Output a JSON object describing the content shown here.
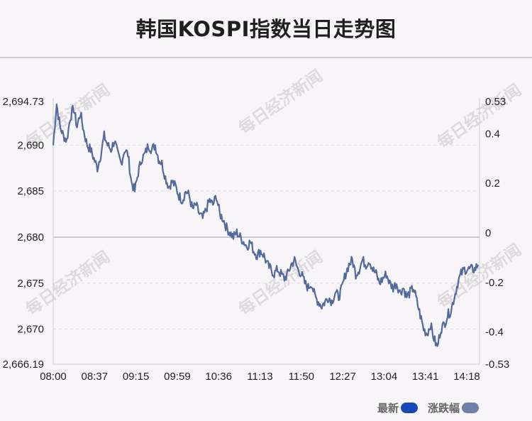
{
  "title": "韩国KOSPI指数当日走势图",
  "watermark": "每日经济新闻",
  "legend": [
    {
      "label": "最新",
      "color": "#1a47b8"
    },
    {
      "label": "涨跌幅",
      "color": "#6f80ab"
    }
  ],
  "chart_data": {
    "type": "line",
    "title": "韩国KOSPI指数当日走势图",
    "line_color": "#546a9c",
    "x_ticks": [
      "08:00",
      "08:37",
      "09:15",
      "09:59",
      "10:36",
      "11:13",
      "11:50",
      "12:27",
      "13:04",
      "13:41",
      "14:18"
    ],
    "y_left_ticks": [
      "2,694.73",
      "2,690",
      "2,685",
      "2,680",
      "2,675",
      "2,670",
      "2,666.19"
    ],
    "y_left_values": [
      2694.73,
      2690,
      2685,
      2680,
      2675,
      2670,
      2666.19
    ],
    "y_right_ticks": [
      "0.53",
      "0.4",
      "0.2",
      "0",
      "-0.2",
      "-0.4",
      "-0.53"
    ],
    "y_right_values": [
      0.53,
      0.4,
      0.2,
      0,
      -0.2,
      -0.4,
      -0.53
    ],
    "ylim": [
      2666.19,
      2694.73
    ],
    "series": [
      {
        "values": [
          2690.0,
          2694.5,
          2692.0,
          2691.0,
          2690.5,
          2693.0,
          2694.0,
          2692.0,
          2693.5,
          2691.5,
          2690.0,
          2689.5,
          2688.5,
          2687.5,
          2689.0,
          2691.0,
          2690.0,
          2689.5,
          2690.5,
          2689.0,
          2688.0,
          2689.5,
          2689.0,
          2686.0,
          2685.0,
          2687.0,
          2688.5,
          2689.0,
          2690.0,
          2689.5,
          2690.0,
          2688.5,
          2688.0,
          2686.5,
          2685.5,
          2686.0,
          2685.5,
          2684.5,
          2684.0,
          2685.0,
          2684.5,
          2683.0,
          2683.5,
          2682.5,
          2682.0,
          2683.0,
          2684.0,
          2683.5,
          2684.5,
          2682.5,
          2682.0,
          2681.0,
          2680.5,
          2680.0,
          2680.5,
          2680.0,
          2679.5,
          2679.0,
          2679.5,
          2678.5,
          2678.0,
          2678.5,
          2678.0,
          2677.0,
          2676.5,
          2676.0,
          2676.5,
          2676.0,
          2675.5,
          2676.0,
          2677.0,
          2677.5,
          2676.5,
          2676.0,
          2675.0,
          2674.5,
          2675.0,
          2673.5,
          2673.0,
          2672.5,
          2673.0,
          2673.5,
          2673.0,
          2674.0,
          2673.5,
          2674.5,
          2676.0,
          2677.0,
          2677.5,
          2676.0,
          2676.5,
          2677.5,
          2677.0,
          2677.5,
          2676.5,
          2676.0,
          2675.0,
          2675.5,
          2676.0,
          2675.0,
          2674.5,
          2675.0,
          2674.0,
          2674.5,
          2673.5,
          2674.0,
          2674.5,
          2673.0,
          2671.5,
          2670.0,
          2669.5,
          2670.5,
          2669.0,
          2668.0,
          2670.0,
          2670.5,
          2671.5,
          2672.0,
          2673.5,
          2675.0,
          2676.0,
          2676.5,
          2676.5,
          2676.5,
          2676.5,
          2677.0
        ]
      }
    ]
  }
}
